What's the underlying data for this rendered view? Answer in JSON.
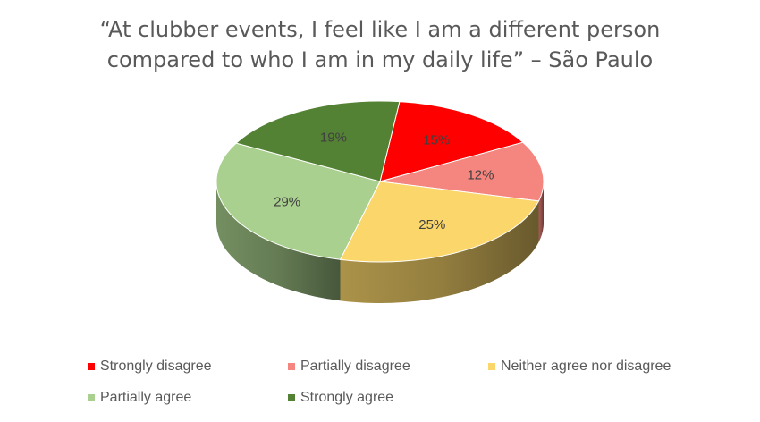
{
  "chart_data": {
    "type": "pie",
    "title_lines": [
      "“At clubber events, I feel like I am a different person",
      "compared to who I am in my daily life” – São Paulo"
    ],
    "categories": [
      "Strongly disagree",
      "Partially disagree",
      "Neither agree nor disagree",
      "Partially agree",
      "Strongly agree"
    ],
    "values": [
      15,
      12,
      25,
      29,
      19
    ],
    "value_labels": [
      "15%",
      "12%",
      "25%",
      "29%",
      "19%"
    ],
    "unit": "%",
    "colors": [
      "#ff0000",
      "#f4857f",
      "#fad66b",
      "#a9d08e",
      "#548235"
    ],
    "legend_position": "bottom",
    "style": "3d-pie"
  }
}
